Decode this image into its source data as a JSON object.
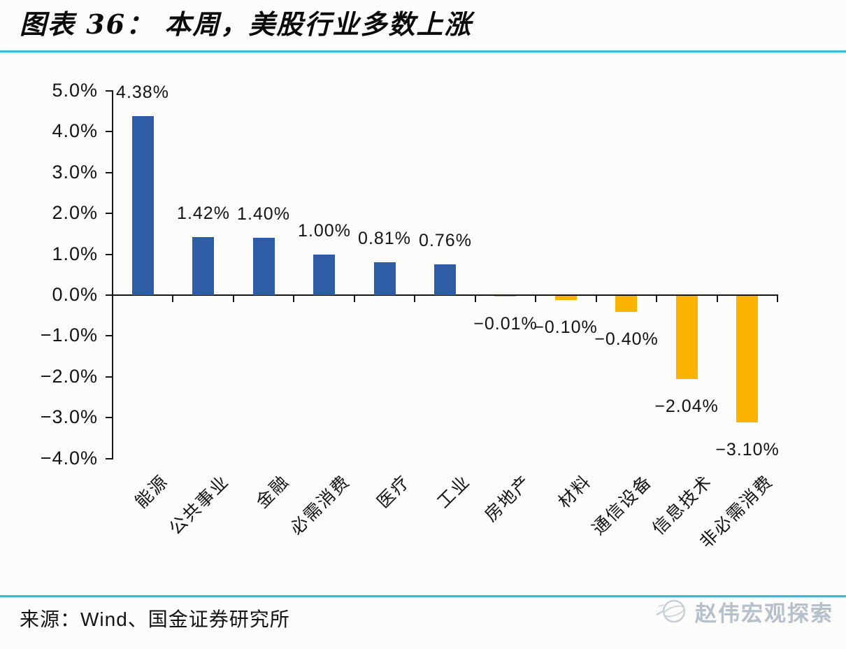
{
  "page": {
    "title": "图表 36： 本周，美股行业多数上涨",
    "source_label": "来源：Wind、国金证券研究所",
    "watermark_text": "赵伟宏观探索"
  },
  "chart_data": {
    "type": "bar",
    "title": "本周，美股行业多数上涨",
    "categories": [
      "能源",
      "公共事业",
      "金融",
      "必需消费",
      "医疗",
      "工业",
      "房地产",
      "材料",
      "通信设备",
      "信息技术",
      "非必需消费"
    ],
    "category_keys": [
      "energy",
      "utilities",
      "financials",
      "consumer-staples",
      "healthcare",
      "industrials",
      "real-estate",
      "materials",
      "telecom-equipment",
      "info-tech",
      "consumer-discretionary"
    ],
    "values": [
      4.38,
      1.42,
      1.4,
      1.0,
      0.81,
      0.76,
      -0.01,
      -0.1,
      -0.4,
      -2.04,
      -3.1
    ],
    "value_labels": [
      "4.38%",
      "1.42%",
      "1.40%",
      "1.00%",
      "0.81%",
      "0.76%",
      "−0.01%",
      "−0.10%",
      "−0.40%",
      "−2.04%",
      "−3.10%"
    ],
    "xlabel": "",
    "ylabel": "",
    "y_ticks": [
      5,
      4,
      3,
      2,
      1,
      0,
      -1,
      -2,
      -3,
      -4
    ],
    "y_tick_labels": [
      "5.0%",
      "4.0%",
      "3.0%",
      "2.0%",
      "1.0%",
      "0.0%",
      "−1.0%",
      "−2.0%",
      "−3.0%",
      "−4.0%"
    ],
    "ylim": [
      -4,
      5
    ],
    "grid": false,
    "legend": null,
    "colors": {
      "positive_bar": "#2E5CA5",
      "negative_bar": "#FBB300",
      "axis": "#161616",
      "accent_rule": "#41B8D9",
      "watermark": "#B5C0CA"
    }
  }
}
